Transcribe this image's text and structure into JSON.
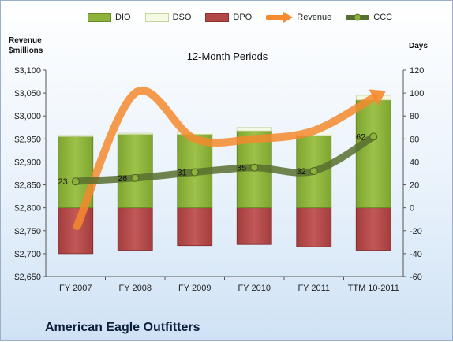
{
  "chart_data": {
    "type": "bar",
    "subtitle": "12-Month Periods",
    "company": "American Eagle Outfitters",
    "left_axis_label": [
      "Revenue",
      "$millions"
    ],
    "right_axis_label": "Days",
    "categories": [
      "FY 2007",
      "FY 2008",
      "FY 2009",
      "FY 2010",
      "FY 2011",
      "TTM 10-2011"
    ],
    "left_axis": {
      "min": 2650,
      "max": 3100,
      "step": 50,
      "ticks": [
        "$2,650",
        "$2,700",
        "$2,750",
        "$2,800",
        "$2,850",
        "$2,900",
        "$2,950",
        "$3,000",
        "$3,050",
        "$3,100"
      ]
    },
    "right_axis": {
      "min": -60,
      "max": 120,
      "step": 20,
      "ticks": [
        "-60",
        "-40",
        "-20",
        "0",
        "20",
        "40",
        "60",
        "80",
        "100",
        "120"
      ]
    },
    "series": [
      {
        "name": "DIO",
        "kind": "bar",
        "color": "#8db33b",
        "values": [
          62,
          64,
          64,
          67,
          63,
          94
        ]
      },
      {
        "name": "DSO",
        "kind": "bar",
        "color": "#f4f9e4",
        "values": [
          1,
          1,
          2,
          3,
          3,
          4
        ]
      },
      {
        "name": "DPO",
        "kind": "bar",
        "color": "#b04848",
        "values": [
          -40,
          -37,
          -33,
          -32,
          -34,
          -37
        ]
      },
      {
        "name": "Revenue",
        "kind": "line",
        "axis": "left",
        "color": "#f58a2e",
        "values": [
          2760,
          3050,
          2950,
          2950,
          2968,
          3040
        ]
      },
      {
        "name": "CCC",
        "kind": "line",
        "axis": "right",
        "color": "#586f2f",
        "values": [
          23,
          26,
          31,
          35,
          32,
          62
        ],
        "labels": [
          "23",
          "26",
          "31",
          "35",
          "32",
          "62"
        ]
      }
    ],
    "grid": false
  }
}
